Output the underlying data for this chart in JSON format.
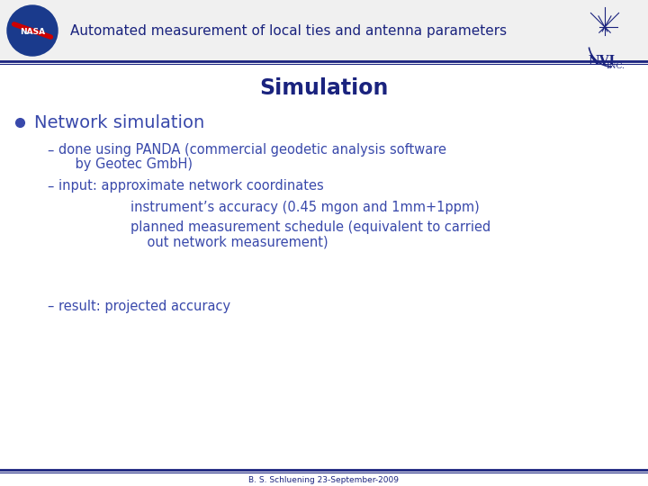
{
  "title": "Automated measurement of local ties and antenna parameters",
  "slide_title": "Simulation",
  "bullet_main": "Network simulation",
  "dash1_line1": "done using PANDA (commercial geodetic analysis software",
  "dash1_line2": "    by Geotec GmbH)",
  "dash2_intro": "input: approximate network coordinates",
  "dash2_sub1": "instrument’s accuracy (0.45 mgon and 1mm+1ppm)",
  "dash2_sub2": "planned measurement schedule (equivalent to carried",
  "dash2_sub3": "    out network measurement)",
  "dash3": "result: projected accuracy",
  "footer": "B. S. Schluening 23-September-2009",
  "header_bg": "#f5f5f5",
  "slide_title_color": "#1a237e",
  "bullet_color": "#3949ab",
  "body_bg": "#ffffff",
  "dark_blue": "#1a237e",
  "header_text_color": "#1a237e"
}
